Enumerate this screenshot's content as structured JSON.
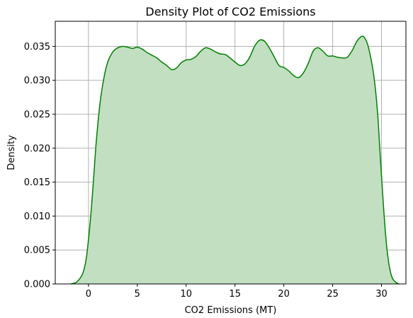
{
  "chart_data": {
    "type": "area",
    "title": "Density Plot of CO2 Emissions",
    "xlabel": "CO2 Emissions (MT)",
    "ylabel": "Density",
    "xlim": [
      -3.4,
      32.5
    ],
    "ylim": [
      0,
      0.0387
    ],
    "xticks": [
      0,
      5,
      10,
      15,
      20,
      25,
      30
    ],
    "xtick_labels": [
      "0",
      "5",
      "10",
      "15",
      "20",
      "25",
      "30"
    ],
    "yticks": [
      0,
      0.005,
      0.01,
      0.015,
      0.02,
      0.025,
      0.03,
      0.035
    ],
    "ytick_labels": [
      "0.000",
      "0.005",
      "0.010",
      "0.015",
      "0.020",
      "0.025",
      "0.030",
      "0.035"
    ],
    "grid": true,
    "line_color": "#008000",
    "fill_color": "#c2dfc2",
    "series": [
      {
        "x": [
          -1.8,
          -1.2,
          -0.6,
          -0.2,
          0.2,
          0.5,
          0.8,
          1.2,
          1.6,
          2.0,
          2.5,
          3.0,
          3.5,
          4.0,
          4.5,
          5.0,
          5.5,
          6.0,
          6.5,
          7.0,
          7.5,
          8.0,
          8.5,
          9.0,
          9.5,
          10.0,
          10.5,
          11.0,
          11.5,
          12.0,
          12.5,
          13.0,
          13.5,
          14.0,
          14.5,
          15.0,
          15.5,
          16.0,
          16.5,
          17.0,
          17.5,
          18.0,
          18.5,
          19.0,
          19.5,
          20.0,
          20.5,
          21.0,
          21.5,
          22.0,
          22.5,
          23.0,
          23.5,
          24.0,
          24.5,
          25.0,
          25.5,
          26.0,
          26.5,
          27.0,
          27.5,
          28.0,
          28.3,
          28.6,
          29.0,
          29.3,
          29.6,
          29.9,
          30.2,
          30.5,
          30.8,
          31.1,
          31.5,
          31.8
        ],
        "y": [
          0.0,
          0.0003,
          0.0015,
          0.004,
          0.0095,
          0.015,
          0.021,
          0.0268,
          0.0305,
          0.0328,
          0.0342,
          0.0348,
          0.035,
          0.0349,
          0.0347,
          0.0349,
          0.0346,
          0.0341,
          0.0337,
          0.0333,
          0.0327,
          0.0322,
          0.0316,
          0.0318,
          0.0326,
          0.033,
          0.0331,
          0.0335,
          0.0343,
          0.0348,
          0.0346,
          0.0342,
          0.0339,
          0.0338,
          0.0333,
          0.0327,
          0.0322,
          0.0324,
          0.0334,
          0.035,
          0.0359,
          0.0358,
          0.0348,
          0.0335,
          0.0322,
          0.0319,
          0.0314,
          0.0307,
          0.0304,
          0.0311,
          0.0325,
          0.0343,
          0.0348,
          0.0343,
          0.0336,
          0.0336,
          0.0334,
          0.0333,
          0.0334,
          0.0344,
          0.0358,
          0.0365,
          0.0362,
          0.0352,
          0.0326,
          0.0297,
          0.0252,
          0.0182,
          0.0115,
          0.006,
          0.0026,
          0.0009,
          0.0002,
          0.0
        ]
      }
    ]
  }
}
